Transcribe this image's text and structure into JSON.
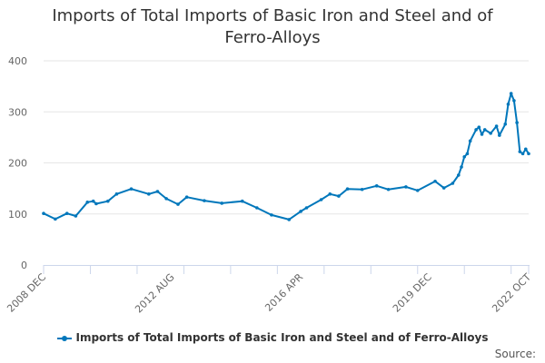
{
  "chart_data": {
    "type": "line",
    "title": "Imports of Total Imports of Basic Iron and Steel and of Ferro-Alloys",
    "xlabel": "",
    "ylabel": "",
    "ylim": [
      0,
      400
    ],
    "yticks": [
      "0",
      "100",
      "200",
      "300",
      "400"
    ],
    "xticks": [
      "2008 DEC",
      "2012 AUG",
      "2016 APR",
      "2019 DEC",
      "2022 OCT"
    ],
    "xrange": [
      "2008-12",
      "2022-10"
    ],
    "grid": true,
    "legend_position": "bottom",
    "color": "#0077bb",
    "series": [
      {
        "name": "Imports of Total Imports of Basic Iron and Steel and of Ferro-Alloys",
        "points": [
          [
            "2008-12",
            101
          ],
          [
            "2009-04",
            90
          ],
          [
            "2009-08",
            101
          ],
          [
            "2009-11",
            96
          ],
          [
            "2010-03",
            123
          ],
          [
            "2010-05",
            125
          ],
          [
            "2010-06",
            120
          ],
          [
            "2010-10",
            125
          ],
          [
            "2011-01",
            139
          ],
          [
            "2011-06",
            149
          ],
          [
            "2011-12",
            139
          ],
          [
            "2012-03",
            144
          ],
          [
            "2012-06",
            130
          ],
          [
            "2012-10",
            119
          ],
          [
            "2013-01",
            133
          ],
          [
            "2013-07",
            126
          ],
          [
            "2014-01",
            121
          ],
          [
            "2014-08",
            125
          ],
          [
            "2015-01",
            112
          ],
          [
            "2015-06",
            98
          ],
          [
            "2015-12",
            89
          ],
          [
            "2016-04",
            105
          ],
          [
            "2016-06",
            112
          ],
          [
            "2016-11",
            128
          ],
          [
            "2017-02",
            139
          ],
          [
            "2017-05",
            135
          ],
          [
            "2017-08",
            149
          ],
          [
            "2018-01",
            148
          ],
          [
            "2018-06",
            155
          ],
          [
            "2018-10",
            148
          ],
          [
            "2019-04",
            153
          ],
          [
            "2019-08",
            146
          ],
          [
            "2020-02",
            164
          ],
          [
            "2020-05",
            151
          ],
          [
            "2020-08",
            160
          ],
          [
            "2020-10",
            176
          ],
          [
            "2020-11",
            192
          ],
          [
            "2020-12",
            212
          ],
          [
            "2021-01",
            218
          ],
          [
            "2021-02",
            243
          ],
          [
            "2021-04",
            265
          ],
          [
            "2021-05",
            270
          ],
          [
            "2021-06",
            256
          ],
          [
            "2021-07",
            265
          ],
          [
            "2021-09",
            258
          ],
          [
            "2021-11",
            272
          ],
          [
            "2021-12",
            254
          ],
          [
            "2022-02",
            276
          ],
          [
            "2022-03",
            315
          ],
          [
            "2022-04",
            336
          ],
          [
            "2022-05",
            322
          ],
          [
            "2022-06",
            279
          ],
          [
            "2022-07",
            222
          ],
          [
            "2022-08",
            218
          ],
          [
            "2022-09",
            227
          ],
          [
            "2022-10",
            218
          ]
        ]
      }
    ]
  },
  "source_label": "Source:"
}
